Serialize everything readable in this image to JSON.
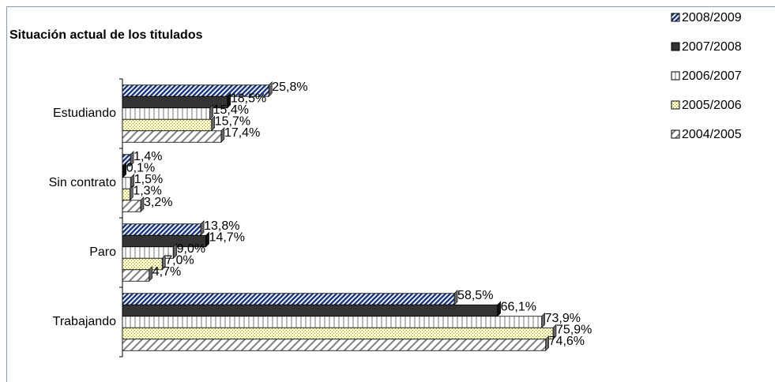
{
  "chart_data": {
    "type": "bar",
    "orientation": "horizontal",
    "title": "Situación actual de los titulados",
    "categories": [
      "Estudiando",
      "Sin contrato",
      "Paro",
      "Trabajando"
    ],
    "series": [
      {
        "name": "2008/2009",
        "color": "#1f3a7a",
        "pattern": "diagonal",
        "values": [
          25.8,
          1.4,
          13.8,
          58.5
        ],
        "value_labels": [
          "25,8%",
          "1,4%",
          "13,8%",
          "58,5%"
        ]
      },
      {
        "name": "2007/2008",
        "color": "#333333",
        "pattern": "solid",
        "values": [
          18.5,
          0.1,
          14.7,
          66.1
        ],
        "value_labels": [
          "18,5%",
          "0,1%",
          "14,7%",
          "66,1%"
        ]
      },
      {
        "name": "2006/2007",
        "color": "#555555",
        "pattern": "vertical",
        "values": [
          15.4,
          1.5,
          9.0,
          73.9
        ],
        "value_labels": [
          "15,4%",
          "1,5%",
          "9,0%",
          "73,9%"
        ]
      },
      {
        "name": "2005/2006",
        "color": "#8a8a40",
        "pattern": "dots",
        "values": [
          15.7,
          1.3,
          7.0,
          75.9
        ],
        "value_labels": [
          "15,7%",
          "1,3%",
          "7,0%",
          "75,9%"
        ]
      },
      {
        "name": "2004/2005",
        "color": "#808080",
        "pattern": "diagonal-light",
        "values": [
          17.4,
          3.2,
          4.7,
          74.6
        ],
        "value_labels": [
          "17,4%",
          "3,2%",
          "4,7%",
          "74,6%"
        ]
      }
    ],
    "legend": "right"
  }
}
